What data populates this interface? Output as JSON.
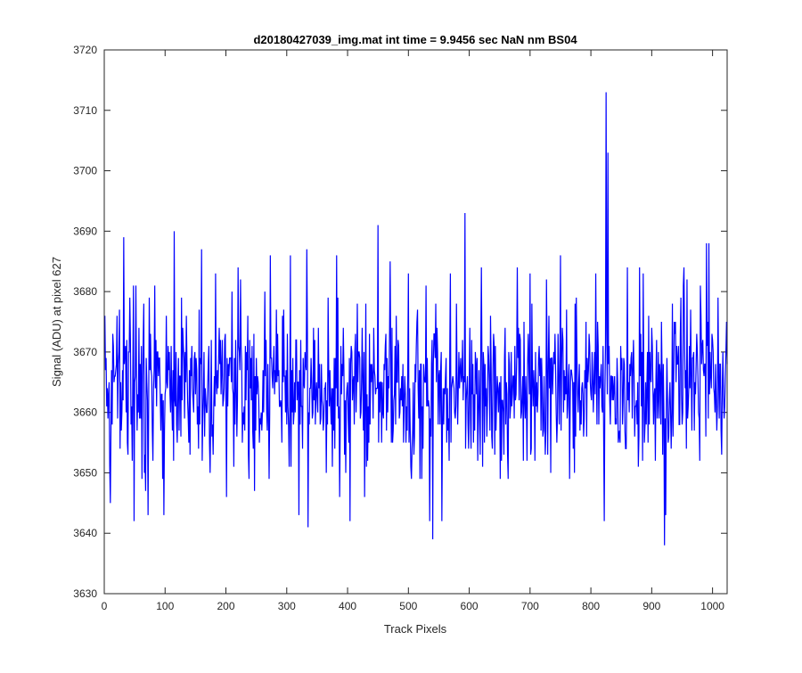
{
  "chart_data": {
    "type": "line",
    "title": "d20180427039_img.mat int time = 9.9456 sec  NaN nm BS04",
    "xlabel": "Track Pixels",
    "ylabel": "Signal (ADU) at pixel 627",
    "xlim": [
      0,
      1024
    ],
    "ylim": [
      3630,
      3720
    ],
    "xticks": [
      "0",
      "100",
      "200",
      "300",
      "400",
      "500",
      "600",
      "700",
      "800",
      "900",
      "1000"
    ],
    "yticks": [
      "3630",
      "3640",
      "3650",
      "3660",
      "3670",
      "3680",
      "3690",
      "3700",
      "3710",
      "3720"
    ],
    "grid": false,
    "box": true,
    "series": [
      {
        "color": "#0000ff",
        "x_start": 1,
        "x_step": 1,
        "point_count": 1024,
        "mean": 3664,
        "std": 7,
        "random_seed": 627,
        "extrema": [
          [
            10,
            3645
          ],
          [
            32,
            3689
          ],
          [
            98,
            3643
          ],
          [
            115,
            3690
          ],
          [
            160,
            3687
          ],
          [
            183,
            3683
          ],
          [
            224,
            3682
          ],
          [
            273,
            3686
          ],
          [
            285,
            3673
          ],
          [
            306,
            3686
          ],
          [
            320,
            3643
          ],
          [
            333,
            3687
          ],
          [
            335,
            3641
          ],
          [
            382,
            3686
          ],
          [
            404,
            3642
          ],
          [
            450,
            3691
          ],
          [
            470,
            3685
          ],
          [
            535,
            3642
          ],
          [
            540,
            3639
          ],
          [
            593,
            3693
          ],
          [
            620,
            3684
          ],
          [
            679,
            3684
          ],
          [
            700,
            3683
          ],
          [
            727,
            3682
          ],
          [
            808,
            3683
          ],
          [
            822,
            3642
          ],
          [
            825,
            3713
          ],
          [
            828,
            3703
          ],
          [
            860,
            3684
          ],
          [
            880,
            3684
          ],
          [
            886,
            3683
          ],
          [
            921,
            3638
          ],
          [
            923,
            3643
          ],
          [
            958,
            3682
          ],
          [
            990,
            3688
          ],
          [
            994,
            3688
          ]
        ]
      }
    ]
  }
}
